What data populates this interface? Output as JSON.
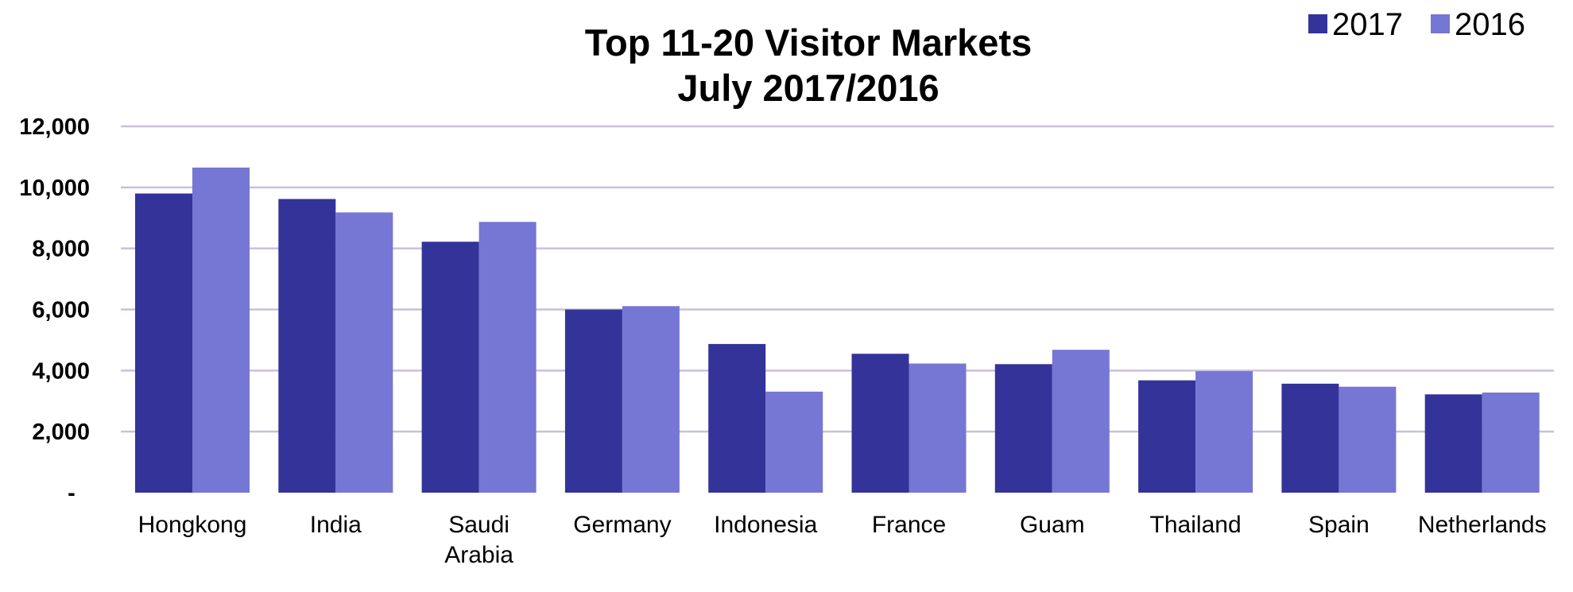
{
  "chart_data": {
    "type": "bar",
    "title_lines": [
      "Top 11-20 Visitor Markets",
      "July 2017/2016"
    ],
    "categories": [
      [
        "Hongkong"
      ],
      [
        "India"
      ],
      [
        "Saudi",
        "Arabia"
      ],
      [
        "Germany"
      ],
      [
        "Indonesia"
      ],
      [
        "France"
      ],
      [
        "Guam"
      ],
      [
        "Thailand"
      ],
      [
        "Spain"
      ],
      [
        "Netherlands"
      ]
    ],
    "series": [
      {
        "name": "2017",
        "color": "#333399",
        "values": [
          9800,
          9620,
          8220,
          6000,
          4870,
          4550,
          4210,
          3680,
          3570,
          3220
        ]
      },
      {
        "name": "2016",
        "color": "#7676d4",
        "values": [
          10650,
          9180,
          8870,
          6110,
          3310,
          4230,
          4680,
          3980,
          3470,
          3280
        ]
      }
    ],
    "ylim": [
      0,
      12000
    ],
    "yticks": [
      {
        "value": 0,
        "label": "-"
      },
      {
        "value": 2000,
        "label": "2,000"
      },
      {
        "value": 4000,
        "label": "4,000"
      },
      {
        "value": 6000,
        "label": "6,000"
      },
      {
        "value": 8000,
        "label": "8,000"
      },
      {
        "value": 10000,
        "label": "10,000"
      },
      {
        "value": 12000,
        "label": "12,000"
      }
    ],
    "grid": true,
    "legend_position": "top-right"
  }
}
